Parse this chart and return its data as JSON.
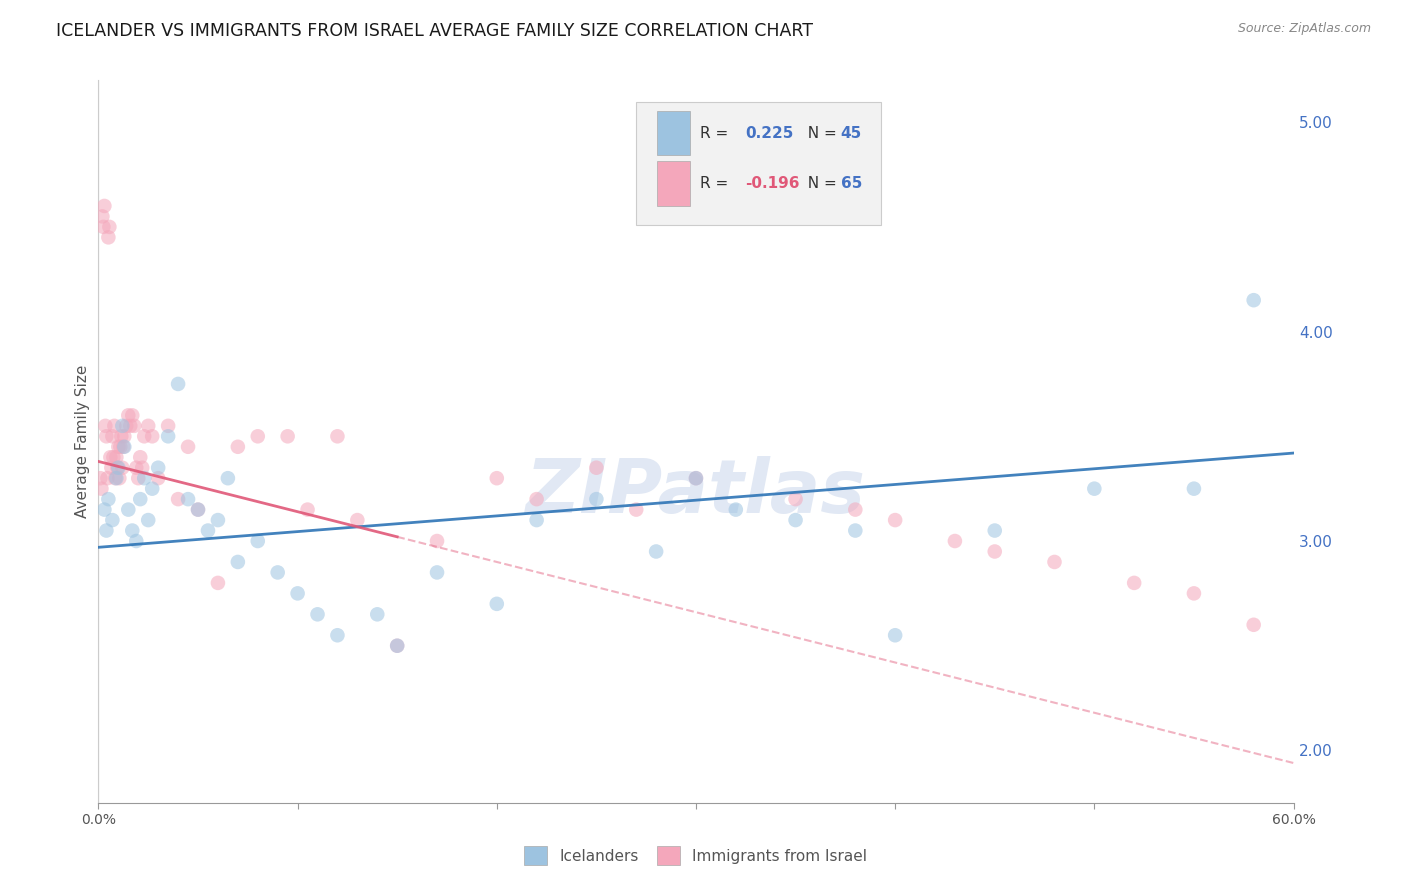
{
  "title": "ICELANDER VS IMMIGRANTS FROM ISRAEL AVERAGE FAMILY SIZE CORRELATION CHART",
  "source_text": "Source: ZipAtlas.com",
  "ylabel": "Average Family Size",
  "right_yticks": [
    2.0,
    3.0,
    4.0,
    5.0
  ],
  "legend_labels": [
    "Icelanders",
    "Immigrants from Israel"
  ],
  "blue_color": "#9dc3e0",
  "pink_color": "#f4a7bb",
  "blue_line_color": "#2e75b6",
  "pink_line_color": "#e05878",
  "watermark": "ZIPatlas",
  "blue_scatter_x": [
    0.3,
    0.4,
    0.5,
    0.7,
    0.9,
    1.0,
    1.2,
    1.3,
    1.5,
    1.7,
    1.9,
    2.1,
    2.3,
    2.5,
    2.7,
    3.0,
    3.5,
    4.0,
    4.5,
    5.0,
    5.5,
    6.0,
    6.5,
    7.0,
    8.0,
    9.0,
    10.0,
    11.0,
    12.0,
    14.0,
    15.0,
    17.0,
    20.0,
    22.0,
    25.0,
    28.0,
    30.0,
    32.0,
    35.0,
    38.0,
    40.0,
    45.0,
    50.0,
    55.0,
    58.0
  ],
  "blue_scatter_y": [
    3.15,
    3.05,
    3.2,
    3.1,
    3.3,
    3.35,
    3.55,
    3.45,
    3.15,
    3.05,
    3.0,
    3.2,
    3.3,
    3.1,
    3.25,
    3.35,
    3.5,
    3.75,
    3.2,
    3.15,
    3.05,
    3.1,
    3.3,
    2.9,
    3.0,
    2.85,
    2.75,
    2.65,
    2.55,
    2.65,
    2.5,
    2.85,
    2.7,
    3.1,
    3.2,
    2.95,
    3.3,
    3.15,
    3.1,
    3.05,
    2.55,
    3.05,
    3.25,
    3.25,
    4.15
  ],
  "pink_scatter_x": [
    0.1,
    0.15,
    0.2,
    0.25,
    0.3,
    0.35,
    0.4,
    0.45,
    0.5,
    0.55,
    0.6,
    0.65,
    0.7,
    0.75,
    0.8,
    0.85,
    0.9,
    0.95,
    1.0,
    1.05,
    1.1,
    1.15,
    1.2,
    1.25,
    1.3,
    1.4,
    1.5,
    1.6,
    1.7,
    1.8,
    1.9,
    2.0,
    2.1,
    2.2,
    2.3,
    2.5,
    2.7,
    3.0,
    3.5,
    4.0,
    4.5,
    5.0,
    6.0,
    7.0,
    8.0,
    9.5,
    10.5,
    12.0,
    13.0,
    15.0,
    17.0,
    20.0,
    22.0,
    25.0,
    27.0,
    30.0,
    35.0,
    38.0,
    40.0,
    43.0,
    45.0,
    48.0,
    52.0,
    55.0,
    58.0
  ],
  "pink_scatter_y": [
    3.3,
    3.25,
    4.55,
    4.5,
    4.6,
    3.55,
    3.5,
    3.3,
    4.45,
    4.5,
    3.4,
    3.35,
    3.5,
    3.4,
    3.55,
    3.3,
    3.4,
    3.35,
    3.45,
    3.3,
    3.45,
    3.5,
    3.35,
    3.45,
    3.5,
    3.55,
    3.6,
    3.55,
    3.6,
    3.55,
    3.35,
    3.3,
    3.4,
    3.35,
    3.5,
    3.55,
    3.5,
    3.3,
    3.55,
    3.2,
    3.45,
    3.15,
    2.8,
    3.45,
    3.5,
    3.5,
    3.15,
    3.5,
    3.1,
    2.5,
    3.0,
    3.3,
    3.2,
    3.35,
    3.15,
    3.3,
    3.2,
    3.15,
    3.1,
    3.0,
    2.95,
    2.9,
    2.8,
    2.75,
    2.6
  ],
  "xlim": [
    0,
    60
  ],
  "ylim": [
    1.75,
    5.2
  ],
  "blue_line_x0": 0,
  "blue_line_y0": 2.97,
  "blue_line_x1": 60,
  "blue_line_y1": 3.42,
  "pink_line_x0": 0,
  "pink_line_y0": 3.38,
  "pink_line_x1": 15,
  "pink_line_y1": 3.02,
  "pink_dash_x0": 15,
  "pink_dash_x1": 60,
  "grid_color": "#d9d9d9",
  "bg_color": "#ffffff",
  "title_fontsize": 12.5,
  "axis_label_fontsize": 11,
  "tick_fontsize": 10,
  "dot_size": 110,
  "dot_alpha": 0.55,
  "line_width": 2.0,
  "right_tick_color": "#4472c4",
  "legend_R1": "0.225",
  "legend_N1": "45",
  "legend_R2": "-0.196",
  "legend_N2": "65",
  "legend_R1_color": "#4472c4",
  "legend_N1_color": "#4472c4",
  "legend_R2_color": "#e05878",
  "legend_N2_color": "#4472c4"
}
